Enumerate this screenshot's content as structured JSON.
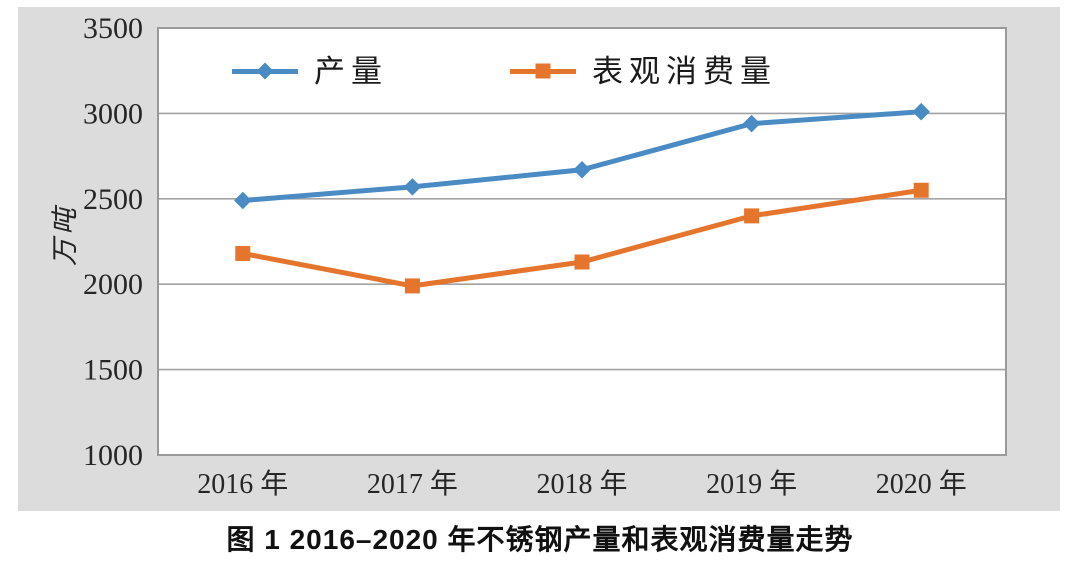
{
  "figure": {
    "caption": "图 1  2016–2020 年不锈钢产量和表观消费量走势"
  },
  "chart_data": {
    "type": "line",
    "title": "",
    "xlabel": "",
    "ylabel": "万吨",
    "categories": [
      "2016 年",
      "2017 年",
      "2018 年",
      "2019 年",
      "2020 年"
    ],
    "series": [
      {
        "name": "产量",
        "values": [
          2490,
          2570,
          2670,
          2940,
          3010
        ],
        "color": "#4a8bc4",
        "marker": "diamond"
      },
      {
        "name": "表观消费量",
        "values": [
          2180,
          1990,
          2130,
          2400,
          2550
        ],
        "color": "#e5752d",
        "marker": "square"
      }
    ],
    "ylim": [
      1000,
      3500
    ],
    "yticks": [
      1000,
      1500,
      2000,
      2500,
      3000,
      3500
    ],
    "grid": true,
    "legend_position": "top-center"
  },
  "style": {
    "chart_background": "#dcdcdc",
    "plot_background": "#ffffff",
    "grid_color": "#a3a3a3",
    "border_color": "#9a9a9a",
    "tick_text_color": "#262626"
  }
}
